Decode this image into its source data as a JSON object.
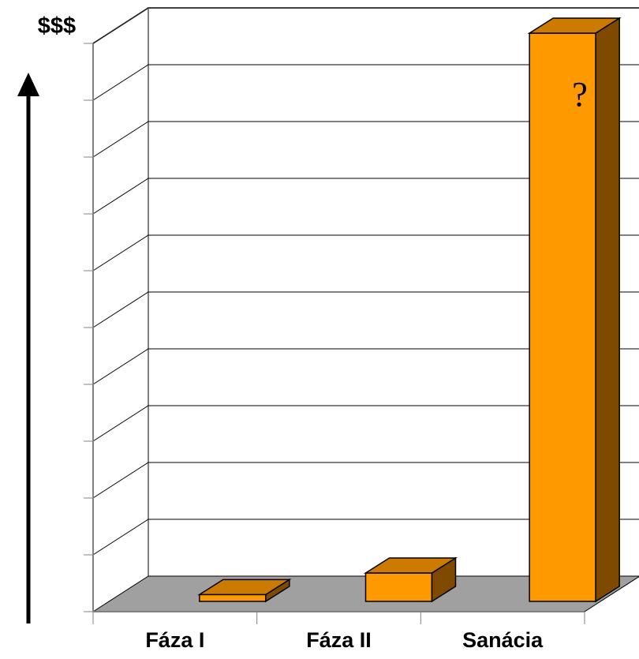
{
  "chart_data": {
    "type": "bar",
    "style": "3d",
    "categories": [
      "Fáza I",
      "Fáza II",
      "Sanácia"
    ],
    "values": [
      1.2,
      5.0,
      100
    ],
    "ylim": [
      0,
      100
    ],
    "y_gridlines": 10,
    "y_tick_labels_shown": false,
    "ylabel": "$$$",
    "xlabel": "",
    "title": "",
    "legend": "none",
    "grid": true,
    "annotations": [
      {
        "category": "Sanácia",
        "text": "?"
      }
    ],
    "colors": {
      "bar_front": "#ff9900",
      "bar_top": "#cc7a00",
      "bar_side": "#7f4a00",
      "floor": "#a0a0a0",
      "grid": "#000000",
      "wall_edge": "#808080",
      "axis_arrow": "#000000"
    }
  }
}
